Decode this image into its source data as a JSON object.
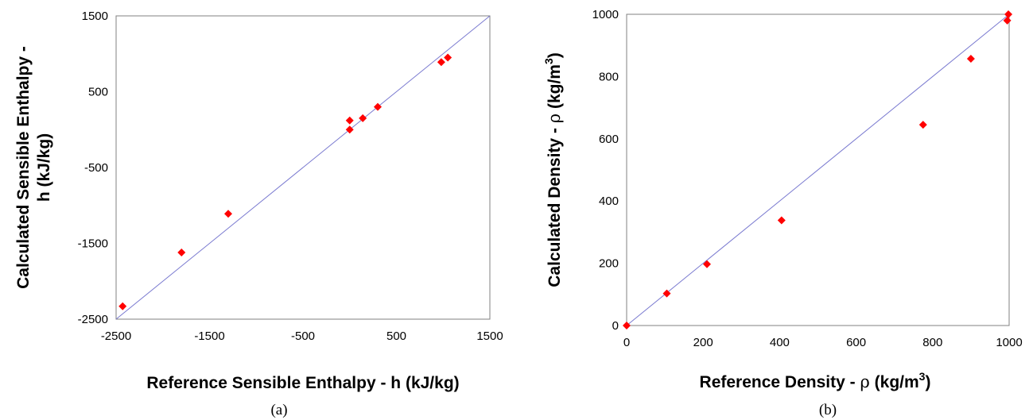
{
  "colors": {
    "marker": "#ff0000",
    "reference_line": "#7a7ad0",
    "frame": "#808080"
  },
  "chart_data": [
    {
      "type": "scatter",
      "panel_label": "(a)",
      "xlabel": "Reference Sensible Enthalpy - h (kJ/kg)",
      "ylabel_line1": "Calculated Sensible Enthalpy -",
      "ylabel_line2": "h (kJ/kg)",
      "xlim": [
        -2500,
        1500
      ],
      "ylim": [
        -2500,
        1500
      ],
      "xticks": [
        "-2500",
        "-1500",
        "-500",
        "500",
        "1500"
      ],
      "yticks": [
        "-2500",
        "-1500",
        "-500",
        "500",
        "1500"
      ],
      "grid": false,
      "reference_line": [
        [
          -2500,
          -2500
        ],
        [
          1500,
          1500
        ]
      ],
      "points": [
        [
          -2430,
          -2330
        ],
        [
          -1800,
          -1620
        ],
        [
          -1300,
          -1110
        ],
        [
          0,
          120
        ],
        [
          0,
          0
        ],
        [
          140,
          150
        ],
        [
          300,
          300
        ],
        [
          980,
          890
        ],
        [
          1050,
          950
        ]
      ]
    },
    {
      "type": "scatter",
      "panel_label": "(b)",
      "xlabel_main": "Reference Density - ",
      "xlabel_symbol": "ρ",
      "xlabel_unit": " (kg/m",
      "xlabel_sup": "3",
      "xlabel_end": ")",
      "ylabel_main": "Calculated Density - ",
      "ylabel_symbol": "ρ",
      "ylabel_unit": " (kg/m",
      "ylabel_sup": "3",
      "ylabel_end": ")",
      "xlim": [
        0,
        1000
      ],
      "ylim": [
        0,
        1000
      ],
      "xticks": [
        "0",
        "200",
        "400",
        "600",
        "800",
        "1000"
      ],
      "yticks": [
        "0",
        "200",
        "400",
        "600",
        "800",
        "1000"
      ],
      "grid": false,
      "reference_line": [
        [
          0,
          0
        ],
        [
          1000,
          1000
        ]
      ],
      "points": [
        [
          0,
          0
        ],
        [
          105,
          103
        ],
        [
          210,
          197
        ],
        [
          405,
          338
        ],
        [
          775,
          645
        ],
        [
          900,
          857
        ],
        [
          995,
          980
        ],
        [
          998,
          1000
        ]
      ]
    }
  ]
}
